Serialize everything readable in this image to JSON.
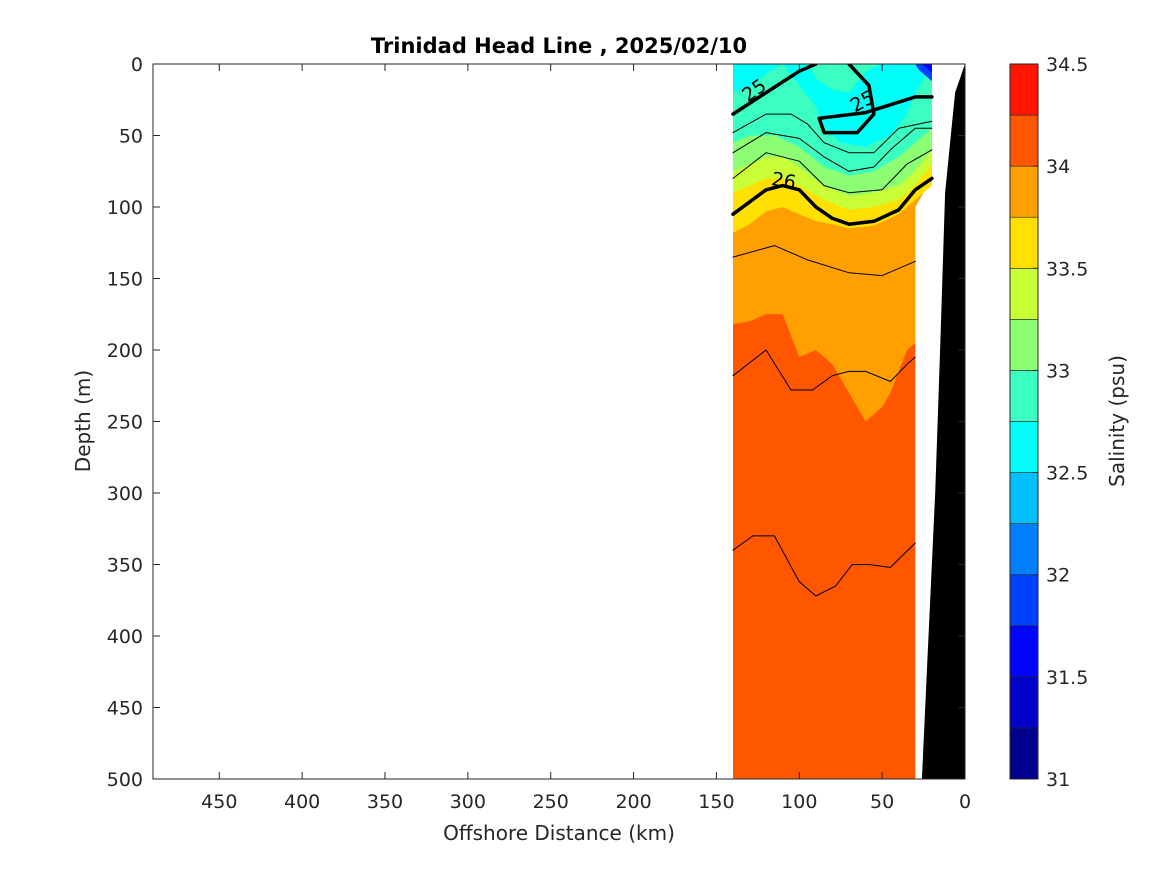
{
  "chart_data": {
    "type": "filled-contour",
    "title": "Trinidad Head Line , 2025/02/10",
    "xlabel": "Offshore Distance (km)",
    "ylabel": "Depth (m)",
    "xlim": [
      490,
      0
    ],
    "ylim": [
      0,
      500
    ],
    "x_reversed": true,
    "y_reversed": true,
    "xticks": [
      "450",
      "400",
      "350",
      "300",
      "250",
      "200",
      "150",
      "100",
      "50",
      "0"
    ],
    "yticks": [
      "0",
      "50",
      "100",
      "150",
      "200",
      "250",
      "300",
      "350",
      "400",
      "450",
      "500"
    ],
    "colorbar": {
      "label": "Salinity (psu)",
      "range": [
        31,
        34.5
      ],
      "step": 0.25,
      "tick_labels": [
        "31",
        "31.5",
        "32",
        "32.5",
        "33",
        "33.5",
        "34",
        "34.5"
      ],
      "colormap": "jet",
      "colors": [
        "#00008f",
        "#0000c9",
        "#0004ff",
        "#0040ff",
        "#0080ff",
        "#00c0ff",
        "#00fff6",
        "#3affc0",
        "#8cff72",
        "#c8ff37",
        "#ffe000",
        "#ffa000",
        "#ff5600",
        "#ff1500",
        "#c00000"
      ]
    },
    "salinity_regions": [
      {
        "salinity": "32.5-32.75",
        "depth_range": [
          0,
          40
        ],
        "distance_range": [
          140,
          30
        ]
      },
      {
        "salinity": "32.75-33",
        "depth_range": [
          0,
          50
        ],
        "distance_range": [
          110,
          30
        ]
      },
      {
        "salinity": "33-33.25",
        "depth_range": [
          40,
          80
        ],
        "distance_range": [
          140,
          20
        ]
      },
      {
        "salinity": "33.25-33.5",
        "depth_range": [
          60,
          100
        ],
        "distance_range": [
          140,
          20
        ]
      },
      {
        "salinity": "33.5-33.75",
        "depth_range": [
          80,
          130
        ],
        "distance_range": [
          140,
          20
        ]
      },
      {
        "salinity": "33.75-34",
        "depth_range": [
          110,
          250
        ],
        "distance_range": [
          140,
          30
        ]
      },
      {
        "salinity": "34-34.25",
        "depth_range": [
          180,
          500
        ],
        "distance_range": [
          140,
          30
        ]
      }
    ],
    "density_contours": [
      {
        "value": "25",
        "labeled": true,
        "bold": true,
        "points": [
          [
            140,
            35
          ],
          [
            120,
            20
          ],
          [
            100,
            5
          ],
          [
            90,
            0
          ]
        ]
      },
      {
        "value": "25",
        "labeled": true,
        "bold": true,
        "points": [
          [
            70,
            0
          ],
          [
            58,
            15
          ],
          [
            55,
            35
          ],
          [
            65,
            48
          ],
          [
            85,
            48
          ],
          [
            88,
            38
          ],
          [
            60,
            34
          ],
          [
            30,
            23
          ],
          [
            20,
            23
          ]
        ]
      },
      {
        "value": "25.25",
        "labeled": false,
        "bold": false,
        "points": [
          [
            140,
            48
          ],
          [
            120,
            35
          ],
          [
            105,
            35
          ],
          [
            95,
            42
          ],
          [
            85,
            55
          ],
          [
            70,
            62
          ],
          [
            55,
            62
          ],
          [
            40,
            45
          ],
          [
            20,
            40
          ]
        ]
      },
      {
        "value": "25.5",
        "labeled": false,
        "bold": false,
        "points": [
          [
            140,
            62
          ],
          [
            120,
            48
          ],
          [
            100,
            52
          ],
          [
            85,
            65
          ],
          [
            70,
            75
          ],
          [
            55,
            72
          ],
          [
            45,
            60
          ],
          [
            30,
            45
          ],
          [
            20,
            45
          ]
        ]
      },
      {
        "value": "25.75",
        "labeled": false,
        "bold": false,
        "points": [
          [
            140,
            80
          ],
          [
            120,
            62
          ],
          [
            100,
            68
          ],
          [
            85,
            85
          ],
          [
            70,
            90
          ],
          [
            50,
            88
          ],
          [
            35,
            70
          ],
          [
            20,
            60
          ]
        ]
      },
      {
        "value": "26",
        "labeled": true,
        "bold": true,
        "points": [
          [
            140,
            105
          ],
          [
            120,
            88
          ],
          [
            110,
            85
          ],
          [
            100,
            88
          ],
          [
            90,
            100
          ],
          [
            80,
            108
          ],
          [
            70,
            112
          ],
          [
            55,
            110
          ],
          [
            40,
            102
          ],
          [
            30,
            88
          ],
          [
            20,
            80
          ]
        ]
      },
      {
        "value": "26.25",
        "labeled": false,
        "bold": false,
        "points": [
          [
            140,
            135
          ],
          [
            115,
            127
          ],
          [
            95,
            137
          ],
          [
            70,
            146
          ],
          [
            50,
            148
          ],
          [
            30,
            138
          ]
        ]
      },
      {
        "value": "26.5",
        "labeled": false,
        "bold": false,
        "points": [
          [
            140,
            218
          ],
          [
            120,
            200
          ],
          [
            105,
            228
          ],
          [
            92,
            228
          ],
          [
            80,
            218
          ],
          [
            70,
            215
          ],
          [
            60,
            215
          ],
          [
            45,
            222
          ],
          [
            35,
            210
          ],
          [
            30,
            205
          ]
        ]
      },
      {
        "value": "26.75",
        "labeled": false,
        "bold": false,
        "points": [
          [
            140,
            340
          ],
          [
            128,
            330
          ],
          [
            115,
            330
          ],
          [
            100,
            362
          ],
          [
            90,
            372
          ],
          [
            78,
            365
          ],
          [
            68,
            350
          ],
          [
            58,
            350
          ],
          [
            45,
            352
          ],
          [
            30,
            335
          ]
        ]
      }
    ],
    "bathymetry": {
      "color": "#000000",
      "points": [
        [
          0,
          0
        ],
        [
          6,
          20
        ],
        [
          12,
          90
        ],
        [
          15,
          200
        ],
        [
          18,
          300
        ],
        [
          22,
          400
        ],
        [
          26,
          500
        ]
      ]
    }
  }
}
